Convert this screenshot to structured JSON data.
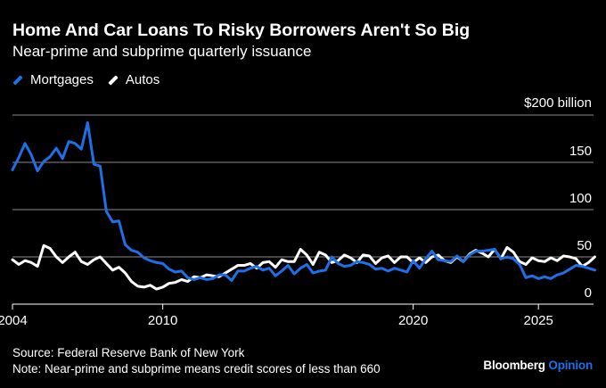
{
  "chart_data": {
    "type": "line",
    "title": "Home And Car Loans To Risky Borrowers Aren't So Big",
    "subtitle": "Near-prime and subprime quarterly issuance",
    "ylabel": "$200 billion",
    "ylim": [
      0,
      200
    ],
    "xlim": [
      2004,
      2027.2
    ],
    "y_ticks": [
      0,
      50,
      100,
      150
    ],
    "y_tick_labels": [
      "0",
      "50",
      "100",
      "150"
    ],
    "x_ticks": [
      2004,
      2010,
      2020,
      2025
    ],
    "x_tick_labels": [
      "2004",
      "2010",
      "2020",
      "2025"
    ],
    "grid": true,
    "legend_position": "top-left",
    "series": [
      {
        "name": "Mortgages",
        "color": "#1f6fe6",
        "x_start": 2004,
        "step": 0.25,
        "values": [
          142,
          155,
          170,
          158,
          141,
          151,
          156,
          165,
          154,
          172,
          170,
          164,
          192,
          148,
          146,
          98,
          87,
          88,
          63,
          57,
          55,
          49,
          46,
          44,
          43,
          37,
          34,
          35,
          28,
          26,
          28,
          26,
          27,
          31,
          31,
          25,
          35,
          35,
          38,
          40,
          36,
          38,
          30,
          35,
          41,
          32,
          38,
          42,
          33,
          35,
          36,
          50,
          43,
          40,
          41,
          45,
          44,
          42,
          37,
          38,
          35,
          38,
          36,
          34,
          46,
          38,
          48,
          56,
          47,
          46,
          45,
          51,
          45,
          52,
          56,
          56,
          57,
          58,
          48,
          50,
          48,
          42,
          28,
          30,
          27,
          29,
          27,
          31,
          33,
          37,
          41,
          40,
          38,
          36
        ],
        "marker_color": "#1f6fe6"
      },
      {
        "name": "Autos",
        "color": "#ffffff",
        "x_start": 2004,
        "step": 0.25,
        "values": [
          47,
          42,
          46,
          44,
          40,
          62,
          59,
          50,
          44,
          50,
          55,
          45,
          42,
          47,
          50,
          43,
          36,
          39,
          33,
          24,
          19,
          18,
          20,
          16,
          18,
          22,
          23,
          26,
          24,
          29,
          28,
          31,
          30,
          29,
          33,
          37,
          41,
          41,
          43,
          38,
          44,
          45,
          39,
          47,
          45,
          45,
          58,
          52,
          42,
          55,
          52,
          44,
          46,
          52,
          49,
          44,
          52,
          51,
          43,
          49,
          51,
          44,
          50,
          50,
          44,
          49,
          44,
          50,
          52,
          46,
          44,
          50,
          45,
          53,
          57,
          54,
          50,
          58,
          48,
          60,
          55,
          45,
          42,
          49,
          46,
          45,
          49,
          46,
          51,
          50,
          48,
          40,
          44,
          50
        ],
        "marker_color": "#ffffff"
      }
    ]
  },
  "legend": {
    "items": [
      {
        "label": "Mortgages",
        "color": "#1f6fe6"
      },
      {
        "label": "Autos",
        "color": "#ffffff"
      }
    ]
  },
  "footer": {
    "source": "Source: Federal Reserve Bank of New York",
    "note": "Note: Near-prime and subprime means credit scores of less than 660"
  },
  "branding": {
    "name": "Bloomberg",
    "product": "Opinion",
    "name_color": "#ffffff",
    "product_color": "#1f6fe6"
  }
}
